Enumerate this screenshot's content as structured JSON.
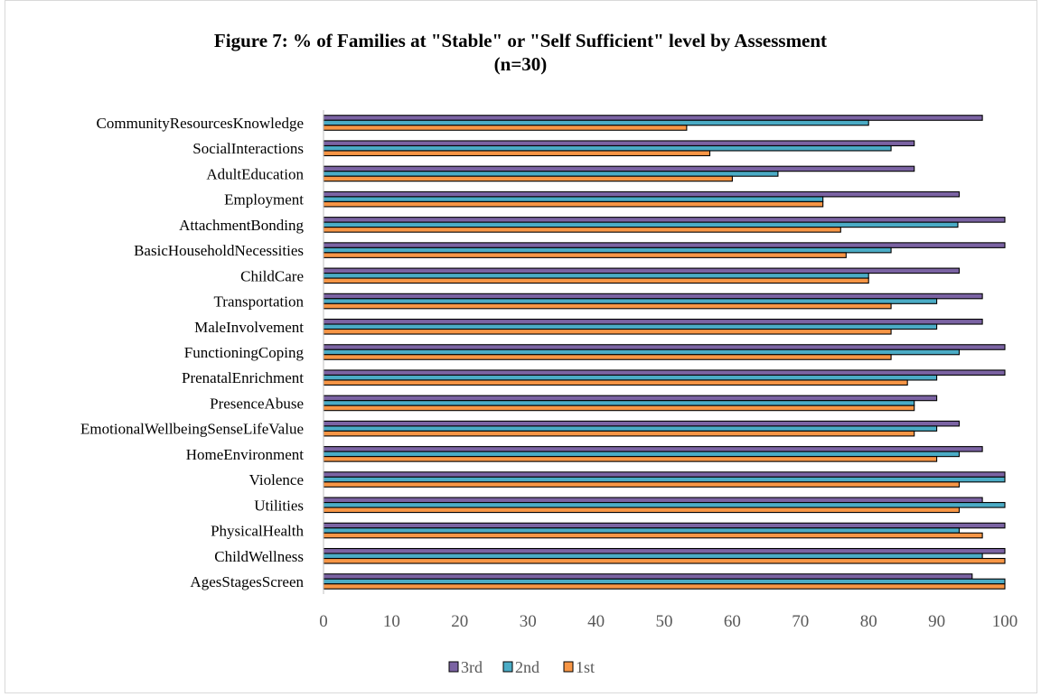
{
  "chart_data": {
    "type": "bar",
    "orientation": "horizontal",
    "title_line1": "Figure 7: % of Families at \"Stable\" or \"Self Sufficient\" level by Assessment",
    "title_line2": "(n=30)",
    "xlabel": "",
    "ylabel": "",
    "xlim": [
      0,
      100
    ],
    "x_ticks": [
      0,
      10,
      20,
      30,
      40,
      50,
      60,
      70,
      80,
      90,
      100
    ],
    "grid": false,
    "legend_position": "bottom",
    "categories": [
      "CommunityResourcesKnowledge",
      "SocialInteractions",
      "AdultEducation",
      "Employment",
      "AttachmentBonding",
      "BasicHouseholdNecessities",
      "ChildCare",
      "Transportation",
      "MaleInvolvement",
      "FunctioningCoping",
      "PrenatalEnrichment",
      "PresenceAbuse",
      "EmotionalWellbeingSenseLifeValue",
      "HomeEnvironment",
      "Violence",
      "Utilities",
      "PhysicalHealth",
      "ChildWellness",
      "AgesStagesScreen"
    ],
    "series": [
      {
        "name": "3rd",
        "color": "#7b63a3",
        "values": [
          96.7,
          86.7,
          86.7,
          93.3,
          100,
          100,
          93.3,
          96.7,
          96.7,
          100,
          100,
          90,
          93.3,
          96.7,
          100,
          96.7,
          100,
          100,
          95.2
        ]
      },
      {
        "name": "2nd",
        "color": "#4bacc6",
        "values": [
          80,
          83.3,
          66.7,
          73.3,
          93.1,
          83.3,
          80,
          90,
          90,
          93.3,
          90,
          86.7,
          90,
          93.3,
          100,
          100,
          93.3,
          96.7,
          100
        ]
      },
      {
        "name": "1st",
        "color": "#f79646",
        "values": [
          53.3,
          56.7,
          60,
          73.3,
          75.9,
          76.7,
          80,
          83.3,
          83.3,
          83.3,
          85.7,
          86.7,
          86.7,
          90,
          93.3,
          93.3,
          96.7,
          100,
          100
        ]
      }
    ]
  }
}
